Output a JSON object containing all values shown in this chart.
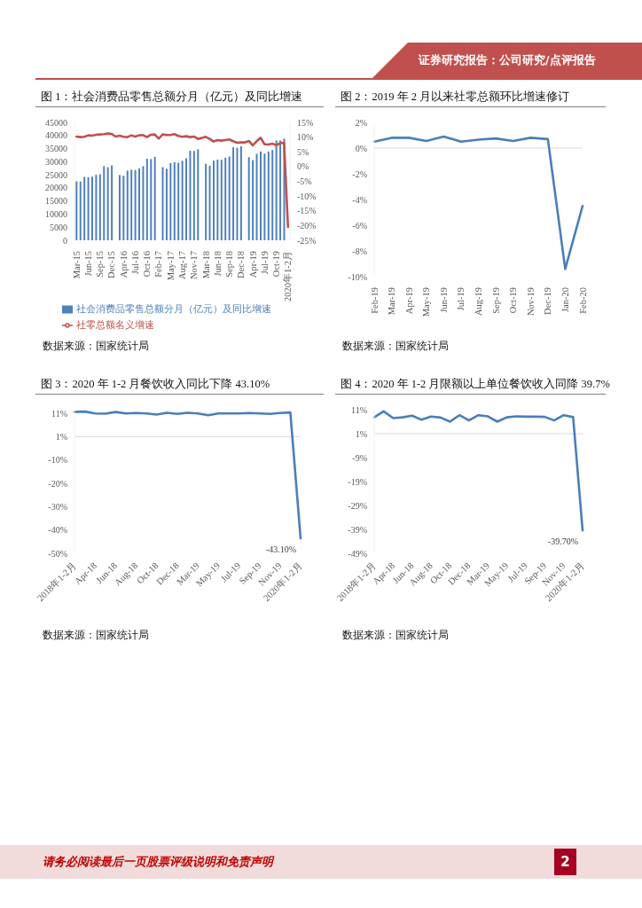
{
  "chart_data": [
    {
      "type": "bar",
      "title": "图 1：社会消费品零售总额分月（亿元）及同比增速",
      "categories": [
        "Mar-15",
        null,
        null,
        "Jun-15",
        null,
        null,
        "Sep-15",
        null,
        null,
        "Dec-15",
        null,
        null,
        "Apr-16",
        null,
        null,
        "Jul-16",
        null,
        null,
        "Oct-16",
        null,
        null,
        "Feb-17",
        null,
        null,
        "May-17",
        null,
        null,
        "Aug-17",
        null,
        null,
        "Nov-17",
        null,
        null,
        "Mar-18",
        null,
        null,
        "Jun-18",
        null,
        null,
        "Sep-18",
        null,
        null,
        "Dec-18",
        null,
        null,
        "Apr-19",
        null,
        null,
        "Jul-19",
        null,
        null,
        "Oct-19",
        null,
        null,
        "2020年1-2月"
      ],
      "series": [
        {
          "name": "社会消费品零售总额分月（亿元）及同比增速",
          "color": "#4f81bd",
          "values": [
            22500,
            22400,
            24200,
            24100,
            24300,
            25000,
            25200,
            28300,
            27900,
            28600,
            null,
            24900,
            24600,
            26600,
            26900,
            26800,
            27400,
            28300,
            31100,
            31000,
            31800,
            null,
            27900,
            27300,
            29500,
            29800,
            29600,
            30300,
            31300,
            34200,
            34100,
            34700,
            null,
            29200,
            28500,
            30400,
            30800,
            30700,
            31500,
            32000,
            35500,
            35300,
            35900,
            null,
            31700,
            30600,
            33000,
            33900,
            33100,
            33900,
            34500,
            38100,
            38100,
            38800,
            null
          ]
        },
        {
          "name": "社零总额名义增速",
          "type": "line",
          "axis": "y2",
          "color": "#c0504d",
          "values": [
            10.2,
            10.0,
            10.1,
            10.6,
            10.5,
            10.8,
            10.9,
            11.0,
            11.2,
            11.1,
            10.2,
            10.5,
            10.1,
            10.0,
            10.6,
            10.2,
            10.6,
            10.7,
            10.0,
            10.8,
            10.9,
            9.5,
            10.9,
            10.7,
            10.7,
            11.0,
            10.4,
            10.1,
            10.3,
            10.0,
            10.2,
            9.4,
            9.7,
            10.1,
            9.4,
            8.5,
            9.0,
            8.8,
            9.0,
            9.2,
            8.6,
            8.1,
            8.2,
            8.2,
            8.7,
            7.2,
            8.6,
            9.8,
            7.6,
            7.5,
            7.8,
            7.2,
            8.0,
            8.0,
            -20.5
          ]
        }
      ],
      "ylim": [
        0,
        45000
      ],
      "yticks": [
        0,
        5000,
        10000,
        15000,
        20000,
        25000,
        30000,
        35000,
        40000,
        45000
      ],
      "y2lim": [
        -25,
        15
      ],
      "y2ticks": [
        {
          "value": -25,
          "label": "-25%"
        },
        {
          "value": -20,
          "label": "-20%"
        },
        {
          "value": -15,
          "label": "-15%"
        },
        {
          "value": -10,
          "label": "-10%"
        },
        {
          "value": -5,
          "label": "-5%"
        },
        {
          "value": 0,
          "label": "0%"
        },
        {
          "value": 5,
          "label": "5%"
        },
        {
          "value": 10,
          "label": "10%"
        },
        {
          "value": 15,
          "label": "15%"
        }
      ],
      "marker": "none",
      "legend": "bottom",
      "annotations": [
        "数据来源：国家统计局",
        "证券研究报告：公司研究/点评报告",
        "请务必阅读最后一页股票评级说明和免责声明",
        "2"
      ]
    },
    {
      "type": "line",
      "title": "图 2：2019 年 2 月以来社零总额环比增速修订",
      "categories": [
        "Feb-19",
        "Mar-19",
        "Apr-19",
        "May-19",
        "Jun-19",
        "Jul-19",
        "Aug-19",
        "Sep-19",
        "Oct-19",
        "Nov-19",
        "Dec-19",
        "Jan-20",
        "Feb-20"
      ],
      "series": [
        {
          "color": "#4a7ebb",
          "values": [
            0.5,
            0.8,
            0.8,
            0.55,
            0.9,
            0.5,
            0.65,
            0.75,
            0.55,
            0.8,
            0.7,
            -9.4,
            -4.5
          ]
        }
      ],
      "ylim": [
        -10,
        2
      ],
      "yticks": [
        {
          "value": -10,
          "label": "-10%"
        },
        {
          "value": -8,
          "label": "-8%"
        },
        {
          "value": -6,
          "label": "-6%"
        },
        {
          "value": -4,
          "label": "-4%"
        },
        {
          "value": -2,
          "label": "-2%"
        },
        {
          "value": 0,
          "label": "0%"
        },
        {
          "value": 2,
          "label": "2%"
        }
      ],
      "ref_lines": [
        {
          "axis": "y",
          "value": 0,
          "color": "#d9d9d9"
        }
      ],
      "marker": "none",
      "annotations": [
        "数据来源：国家统计局"
      ]
    },
    {
      "type": "line",
      "title": "图 3：2020 年 1-2 月餐饮收入同比下降 43.10%",
      "categories": [
        "2018年1-2月",
        null,
        "Apr-18",
        null,
        "Jun-18",
        null,
        "Aug-18",
        null,
        "Oct-18",
        null,
        "Dec-18",
        null,
        "Mar-19",
        null,
        "May-19",
        null,
        "Jul-19",
        null,
        "Sep-19",
        null,
        "Nov-19",
        null,
        "2020年1-2月"
      ],
      "series": [
        {
          "color": "#4a7ebb",
          "values": [
            11.0,
            11.2,
            10.4,
            10.3,
            11.0,
            10.4,
            10.6,
            10.4,
            9.9,
            10.7,
            10.2,
            10.7,
            10.4,
            9.6,
            10.4,
            10.4,
            10.4,
            10.6,
            10.4,
            10.2,
            10.6,
            10.8,
            -43.1
          ],
          "value_labels": [
            null,
            null,
            null,
            null,
            null,
            null,
            null,
            null,
            null,
            null,
            null,
            null,
            null,
            null,
            null,
            null,
            null,
            null,
            null,
            null,
            null,
            null,
            "-43.10%"
          ]
        }
      ],
      "ylim": [
        -49.5,
        12
      ],
      "yticks": [
        {
          "value": -49.5,
          "label": "-50%"
        },
        {
          "value": -39.5,
          "label": "-40%"
        },
        {
          "value": -29.5,
          "label": "-30%"
        },
        {
          "value": -19.5,
          "label": "-20%"
        },
        {
          "value": -9.5,
          "label": "-10%"
        },
        {
          "value": 0.5,
          "label": "1%"
        },
        {
          "value": 10.5,
          "label": "11%"
        }
      ],
      "ref_lines": [
        {
          "axis": "y",
          "value": 0.5,
          "color": "#d9d9d9"
        }
      ],
      "marker": "none",
      "annotations": [
        "数据来源：国家统计局"
      ]
    },
    {
      "type": "line",
      "title": "图 4：2020 年 1-2 月限额以上单位餐饮收入同降 39.7%",
      "categories": [
        "2018年1-2月",
        null,
        "Apr-18",
        null,
        "Jun-18",
        null,
        "Aug-18",
        null,
        "Oct-18",
        null,
        "Dec-18",
        null,
        "Mar-19",
        null,
        "May-19",
        null,
        "Jul-19",
        null,
        "Sep-19",
        null,
        "Nov-19",
        null,
        "2020年1-2月"
      ],
      "series": [
        {
          "color": "#4a7ebb",
          "values": [
            7.5,
            10.0,
            7.2,
            7.5,
            8.2,
            6.5,
            7.8,
            7.4,
            5.7,
            8.4,
            6.2,
            8.4,
            7.9,
            5.7,
            7.5,
            7.9,
            7.8,
            7.8,
            7.7,
            6.2,
            8.4,
            7.6,
            -39.7
          ],
          "value_labels": [
            null,
            null,
            null,
            null,
            null,
            null,
            null,
            null,
            null,
            null,
            null,
            null,
            null,
            null,
            null,
            null,
            null,
            null,
            null,
            null,
            null,
            null,
            "-39.70%"
          ]
        }
      ],
      "ylim": [
        -49.3,
        10.7
      ],
      "yticks": [
        {
          "value": -49.3,
          "label": "-49%"
        },
        {
          "value": -39.3,
          "label": "-39%"
        },
        {
          "value": -29.3,
          "label": "-29%"
        },
        {
          "value": -19.3,
          "label": "-19%"
        },
        {
          "value": -9.3,
          "label": "-9%"
        },
        {
          "value": 0.7,
          "label": "1%"
        },
        {
          "value": 10.7,
          "label": "11%"
        }
      ],
      "ref_lines": [
        {
          "axis": "y",
          "value": 0.7,
          "color": "#d9d9d9"
        }
      ],
      "marker": "none",
      "annotations": [
        "数据来源：国家统计局"
      ]
    }
  ]
}
